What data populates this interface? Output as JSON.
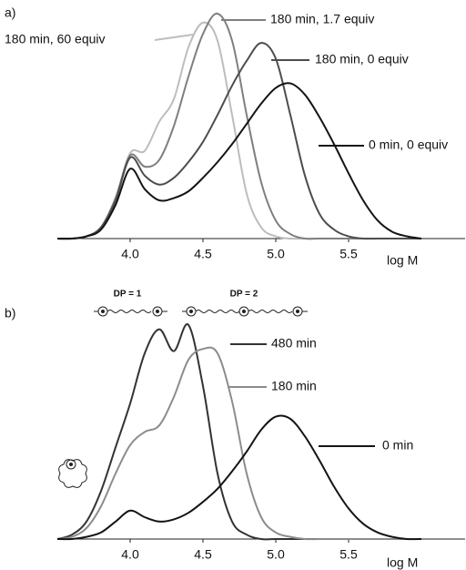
{
  "chart_data": [
    {
      "type": "line",
      "label": "a)",
      "xlabel": "log M",
      "x": [
        3.5,
        3.6,
        3.7,
        3.8,
        3.9,
        4.0,
        4.1,
        4.2,
        4.3,
        4.4,
        4.5,
        4.6,
        4.7,
        4.8,
        4.9,
        5.0,
        5.1,
        5.2,
        5.3,
        5.4,
        5.5,
        5.6,
        5.7,
        5.8,
        5.9,
        6.0
      ],
      "xlim": [
        3.5,
        6.3
      ],
      "xticks": [
        {
          "value": 4.0,
          "label": "4.0"
        },
        4.5,
        {
          "value": 5.0,
          "label": "5.0"
        },
        5.5
      ],
      "ylim": [
        0,
        1
      ],
      "series": [
        {
          "name": "180 min, 60 equiv",
          "color": "#bdbdbd",
          "values": [
            0,
            0,
            0.01,
            0.05,
            0.18,
            0.38,
            0.39,
            0.52,
            0.62,
            0.85,
            0.96,
            0.88,
            0.55,
            0.2,
            0.05,
            0.01,
            0,
            0,
            0,
            0,
            0,
            0,
            0,
            0,
            0,
            0
          ]
        },
        {
          "name": "180 min, 1.7 equiv",
          "color": "#7f7f7f",
          "values": [
            0,
            0,
            0.01,
            0.05,
            0.18,
            0.37,
            0.32,
            0.35,
            0.5,
            0.72,
            0.91,
            1.0,
            0.88,
            0.55,
            0.25,
            0.08,
            0.02,
            0,
            0,
            0,
            0,
            0,
            0,
            0,
            0,
            0
          ]
        },
        {
          "name": "180 min, 0 equiv",
          "color": "#4d4d4d",
          "values": [
            0,
            0,
            0.01,
            0.05,
            0.17,
            0.36,
            0.28,
            0.24,
            0.27,
            0.34,
            0.43,
            0.55,
            0.68,
            0.79,
            0.87,
            0.8,
            0.55,
            0.28,
            0.11,
            0.04,
            0.01,
            0,
            0,
            0,
            0,
            0
          ]
        },
        {
          "name": "0 min, 0 equiv",
          "color": "#141414",
          "values": [
            0,
            0,
            0.01,
            0.04,
            0.15,
            0.31,
            0.22,
            0.17,
            0.18,
            0.21,
            0.27,
            0.34,
            0.42,
            0.51,
            0.6,
            0.67,
            0.69,
            0.64,
            0.54,
            0.42,
            0.29,
            0.17,
            0.08,
            0.03,
            0.01,
            0
          ]
        }
      ]
    },
    {
      "type": "line",
      "label": "b)",
      "xlabel": "log M",
      "annotations": [
        "DP = 1",
        "DP = 2"
      ],
      "x": [
        3.5,
        3.6,
        3.7,
        3.8,
        3.9,
        4.0,
        4.1,
        4.2,
        4.3,
        4.4,
        4.5,
        4.6,
        4.7,
        4.8,
        4.9,
        5.0,
        5.1,
        5.2,
        5.3,
        5.4,
        5.5,
        5.6,
        5.7,
        5.8,
        5.9,
        6.0
      ],
      "xlim": [
        3.5,
        6.3
      ],
      "xticks": [
        {
          "value": 4.0,
          "label": "4.0"
        },
        4.5,
        {
          "value": 5.0,
          "label": "5.0"
        },
        5.5
      ],
      "ylim": [
        0,
        1
      ],
      "series": [
        {
          "name": "480 min",
          "color": "#333333",
          "values": [
            0,
            0.02,
            0.08,
            0.22,
            0.42,
            0.62,
            0.85,
            0.96,
            0.86,
            0.98,
            0.7,
            0.3,
            0.08,
            0.02,
            0,
            0,
            0,
            0,
            0,
            0,
            0,
            0,
            0,
            0,
            0,
            0
          ]
        },
        {
          "name": "180 min",
          "color": "#8c8c8c",
          "values": [
            0,
            0.01,
            0.05,
            0.15,
            0.3,
            0.43,
            0.49,
            0.52,
            0.65,
            0.82,
            0.87,
            0.85,
            0.63,
            0.3,
            0.1,
            0.03,
            0.01,
            0,
            0,
            0,
            0,
            0,
            0,
            0,
            0,
            0
          ]
        },
        {
          "name": "0 min",
          "color": "#141414",
          "values": [
            0,
            0,
            0.01,
            0.03,
            0.08,
            0.13,
            0.1,
            0.08,
            0.09,
            0.12,
            0.17,
            0.23,
            0.31,
            0.4,
            0.5,
            0.56,
            0.55,
            0.47,
            0.36,
            0.24,
            0.14,
            0.07,
            0.03,
            0.01,
            0,
            0
          ]
        }
      ]
    }
  ]
}
